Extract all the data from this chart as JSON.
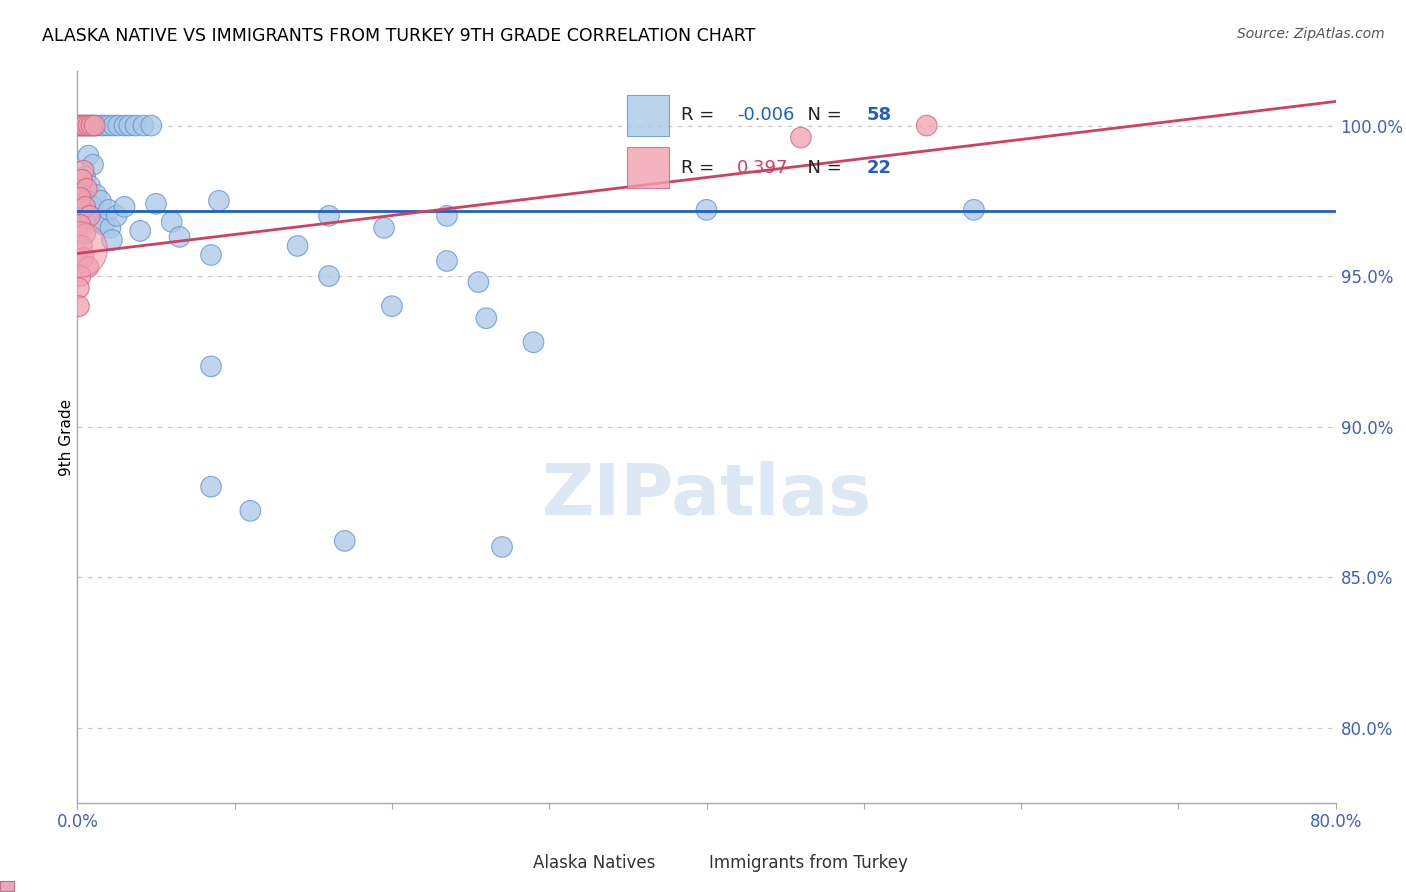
{
  "title": "ALASKA NATIVE VS IMMIGRANTS FROM TURKEY 9TH GRADE CORRELATION CHART",
  "source": "Source: ZipAtlas.com",
  "ylabel": "9th Grade",
  "ylabel_right_ticks": [
    "100.0%",
    "95.0%",
    "90.0%",
    "85.0%",
    "80.0%"
  ],
  "ylabel_right_vals": [
    1.0,
    0.95,
    0.9,
    0.85,
    0.8
  ],
  "xmin": 0.0,
  "xmax": 0.8,
  "ymin": 0.775,
  "ymax": 1.018,
  "legend_blue_r": "-0.006",
  "legend_blue_n": "58",
  "legend_pink_r": "0.397",
  "legend_pink_n": "22",
  "blue_color": "#a8c8e8",
  "blue_edge_color": "#6090c8",
  "pink_color": "#f0a0b0",
  "pink_edge_color": "#d06080",
  "blue_line_color": "#2060c0",
  "pink_line_color": "#d04060",
  "grid_color": "#cccccc",
  "axis_label_color": "#4060c0",
  "tick_color": "#4060c0",
  "blue_line_y": 0.9715,
  "pink_line_y0": 0.9575,
  "pink_line_y1": 1.008,
  "blue_scatter": [
    [
      0.002,
      1.0
    ],
    [
      0.004,
      1.0
    ],
    [
      0.006,
      1.0
    ],
    [
      0.008,
      1.0
    ],
    [
      0.01,
      1.0
    ],
    [
      0.012,
      1.0
    ],
    [
      0.015,
      1.0
    ],
    [
      0.017,
      1.0
    ],
    [
      0.02,
      1.0
    ],
    [
      0.023,
      1.0
    ],
    [
      0.026,
      1.0
    ],
    [
      0.03,
      1.0
    ],
    [
      0.033,
      1.0
    ],
    [
      0.037,
      1.0
    ],
    [
      0.042,
      1.0
    ],
    [
      0.047,
      1.0
    ],
    [
      0.007,
      0.99
    ],
    [
      0.01,
      0.987
    ],
    [
      0.005,
      0.983
    ],
    [
      0.008,
      0.98
    ],
    [
      0.012,
      0.977
    ],
    [
      0.003,
      0.977
    ],
    [
      0.006,
      0.975
    ],
    [
      0.01,
      0.973
    ],
    [
      0.003,
      0.972
    ],
    [
      0.006,
      0.97
    ],
    [
      0.01,
      0.969
    ],
    [
      0.013,
      0.968
    ],
    [
      0.017,
      0.967
    ],
    [
      0.021,
      0.966
    ],
    [
      0.015,
      0.975
    ],
    [
      0.02,
      0.972
    ],
    [
      0.025,
      0.97
    ],
    [
      0.03,
      0.973
    ],
    [
      0.022,
      0.962
    ],
    [
      0.04,
      0.965
    ],
    [
      0.05,
      0.974
    ],
    [
      0.06,
      0.968
    ],
    [
      0.09,
      0.975
    ],
    [
      0.16,
      0.97
    ],
    [
      0.195,
      0.966
    ],
    [
      0.14,
      0.96
    ],
    [
      0.4,
      0.972
    ],
    [
      0.57,
      0.972
    ],
    [
      0.065,
      0.963
    ],
    [
      0.235,
      0.97
    ],
    [
      0.085,
      0.957
    ],
    [
      0.235,
      0.955
    ],
    [
      0.16,
      0.95
    ],
    [
      0.255,
      0.948
    ],
    [
      0.2,
      0.94
    ],
    [
      0.26,
      0.936
    ],
    [
      0.29,
      0.928
    ],
    [
      0.085,
      0.92
    ],
    [
      0.085,
      0.88
    ],
    [
      0.11,
      0.872
    ],
    [
      0.17,
      0.862
    ],
    [
      0.27,
      0.86
    ]
  ],
  "blue_sizes": [
    220,
    220,
    220,
    220,
    220,
    220,
    220,
    220,
    220,
    220,
    220,
    220,
    220,
    220,
    220,
    220,
    220,
    220,
    220,
    220,
    220,
    220,
    220,
    220,
    220,
    220,
    220,
    220,
    220,
    220,
    220,
    220,
    220,
    220,
    220,
    220,
    220,
    220,
    220,
    220,
    220,
    220,
    220,
    220,
    220,
    220,
    220,
    220,
    220,
    220,
    220,
    220,
    220,
    220,
    220,
    220,
    220,
    220
  ],
  "pink_scatter": [
    [
      0.001,
      1.0
    ],
    [
      0.003,
      1.0
    ],
    [
      0.005,
      1.0
    ],
    [
      0.007,
      1.0
    ],
    [
      0.009,
      1.0
    ],
    [
      0.011,
      1.0
    ],
    [
      0.004,
      0.985
    ],
    [
      0.003,
      0.982
    ],
    [
      0.006,
      0.979
    ],
    [
      0.002,
      0.976
    ],
    [
      0.005,
      0.973
    ],
    [
      0.008,
      0.97
    ],
    [
      0.002,
      0.967
    ],
    [
      0.005,
      0.964
    ],
    [
      0.003,
      0.96
    ],
    [
      0.004,
      0.956
    ],
    [
      0.007,
      0.953
    ],
    [
      0.002,
      0.95
    ],
    [
      0.001,
      0.946
    ],
    [
      0.001,
      0.94
    ],
    [
      0.54,
      1.0
    ],
    [
      0.46,
      0.996
    ]
  ],
  "pink_sizes": [
    220,
    220,
    220,
    220,
    220,
    220,
    220,
    220,
    220,
    220,
    220,
    220,
    220,
    220,
    220,
    220,
    220,
    220,
    220,
    220,
    220,
    220
  ],
  "large_pink_idx": 0,
  "large_pink_size": 1800
}
